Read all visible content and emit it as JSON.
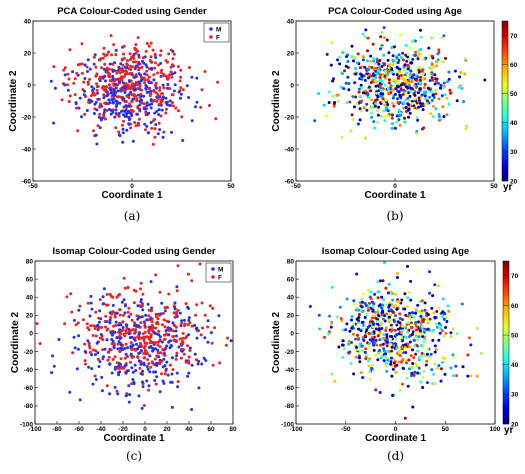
{
  "figure": {
    "colors": {
      "male": "#2233ee",
      "female": "#ee2222",
      "axis": "#000000"
    },
    "colorbar_unit": "yr",
    "colorbar_ticks": [
      20,
      30,
      40,
      50,
      60,
      70
    ]
  },
  "chart_data": [
    {
      "id": "a",
      "type": "scatter",
      "caption": "(a)",
      "title": "PCA Colour-Coded using Gender",
      "xlabel": "Coordinate 1",
      "ylabel": "Coordinate 2",
      "xlim": [
        -50,
        50
      ],
      "ylim": [
        -60,
        40
      ],
      "xticks": [
        -50,
        0,
        50
      ],
      "yticks": [
        -60,
        -40,
        -20,
        0,
        20,
        40
      ],
      "color_mode": "gender",
      "legend": {
        "placement": "top-right",
        "entries": [
          "M",
          "F"
        ]
      },
      "generator": {
        "cx": 0,
        "cy": 0,
        "sx": 14,
        "sy": 13,
        "n": 650,
        "seed": 11,
        "male_shift": -10
      }
    },
    {
      "id": "b",
      "type": "scatter",
      "caption": "(b)",
      "title": "PCA Colour-Coded using Age",
      "xlabel": "Coordinate 1",
      "ylabel": "Coordinate 2",
      "xlim": [
        -50,
        50
      ],
      "ylim": [
        -60,
        40
      ],
      "xticks": [
        -50,
        0,
        50
      ],
      "yticks": [
        -60,
        -40,
        -20,
        0,
        20,
        40
      ],
      "color_mode": "age",
      "age_range": [
        20,
        75
      ],
      "generator": {
        "cx": 0,
        "cy": 0,
        "sx": 14,
        "sy": 13,
        "n": 650,
        "seed": 23
      }
    },
    {
      "id": "c",
      "type": "scatter",
      "caption": "(c)",
      "title": "Isomap Colour-Coded using Gender",
      "xlabel": "Coordinate 1",
      "ylabel": "Coordinate 2",
      "xlim": [
        -100,
        80
      ],
      "ylim": [
        -100,
        80
      ],
      "xticks": [
        -100,
        -80,
        -60,
        -40,
        -20,
        0,
        20,
        40,
        60,
        80
      ],
      "yticks": [
        -100,
        -80,
        -60,
        -40,
        -20,
        0,
        20,
        40,
        60,
        80
      ],
      "color_mode": "gender",
      "legend": {
        "placement": "top-right",
        "entries": [
          "M",
          "F"
        ]
      },
      "generator": {
        "cx": -5,
        "cy": 0,
        "sx": 30,
        "sy": 27,
        "n": 650,
        "seed": 37,
        "male_shift": -18
      }
    },
    {
      "id": "d",
      "type": "scatter",
      "caption": "(d)",
      "title": "Isomap Colour-Coded using Age",
      "xlabel": "Coordinate 1",
      "ylabel": "Coordinate 2",
      "xlim": [
        -100,
        100
      ],
      "ylim": [
        -100,
        80
      ],
      "xticks": [
        -100,
        -50,
        0,
        50,
        100
      ],
      "yticks": [
        -100,
        -80,
        -60,
        -40,
        -20,
        0,
        20,
        40,
        60,
        80
      ],
      "color_mode": "age",
      "age_range": [
        20,
        75
      ],
      "generator": {
        "cx": 0,
        "cy": 0,
        "sx": 30,
        "sy": 27,
        "n": 650,
        "seed": 53
      }
    }
  ]
}
